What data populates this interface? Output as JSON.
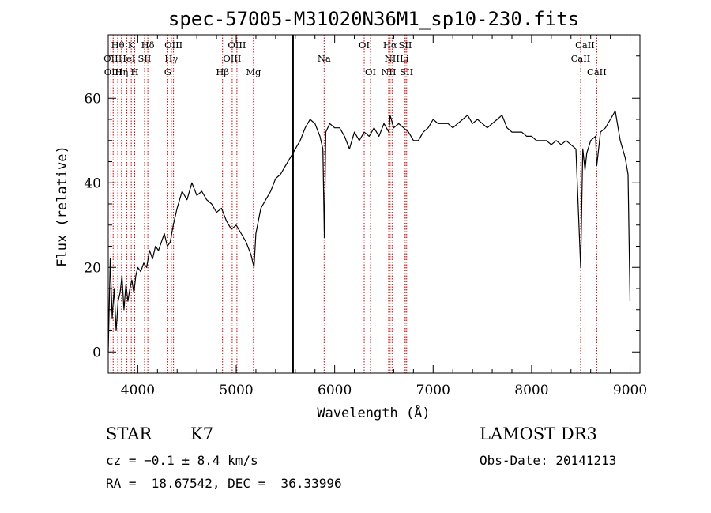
{
  "chart_data": {
    "type": "line",
    "title": "spec-57005-M31020N36M1_sp10-230.fits",
    "xlabel": "Wavelength (Å)",
    "ylabel": "Flux (relative)",
    "xlim": [
      3700,
      9100
    ],
    "ylim": [
      -5,
      75
    ],
    "xticks": [
      4000,
      5000,
      6000,
      7000,
      8000,
      9000
    ],
    "yticks": [
      0,
      20,
      40,
      60
    ],
    "series": [
      {
        "name": "spectrum",
        "color": "#000000",
        "x": [
          3700,
          3720,
          3740,
          3760,
          3780,
          3800,
          3820,
          3840,
          3860,
          3880,
          3900,
          3920,
          3940,
          3960,
          3980,
          4000,
          4030,
          4060,
          4090,
          4120,
          4150,
          4180,
          4210,
          4240,
          4270,
          4300,
          4330,
          4360,
          4400,
          4450,
          4500,
          4550,
          4600,
          4650,
          4700,
          4750,
          4800,
          4850,
          4900,
          4950,
          5000,
          5050,
          5100,
          5150,
          5180,
          5200,
          5250,
          5300,
          5350,
          5400,
          5450,
          5500,
          5550,
          5600,
          5650,
          5700,
          5750,
          5800,
          5850,
          5880,
          5895,
          5910,
          5950,
          6000,
          6050,
          6100,
          6150,
          6200,
          6250,
          6300,
          6350,
          6400,
          6450,
          6500,
          6550,
          6563,
          6600,
          6650,
          6700,
          6750,
          6800,
          6850,
          6900,
          6950,
          7000,
          7050,
          7100,
          7150,
          7200,
          7250,
          7300,
          7350,
          7400,
          7450,
          7500,
          7550,
          7600,
          7650,
          7700,
          7750,
          7800,
          7850,
          7900,
          7950,
          8000,
          8050,
          8100,
          8150,
          8200,
          8250,
          8300,
          8350,
          8400,
          8450,
          8498,
          8520,
          8542,
          8560,
          8600,
          8650,
          8662,
          8700,
          8750,
          8800,
          8850,
          8900,
          8950,
          8980,
          9000
        ],
        "y": [
          0,
          22,
          8,
          15,
          5,
          12,
          14,
          18,
          10,
          16,
          12,
          15,
          17,
          14,
          18,
          20,
          19,
          21,
          20,
          24,
          22,
          25,
          24,
          26,
          28,
          25,
          26,
          30,
          34,
          38,
          36,
          40,
          37,
          38,
          36,
          35,
          33,
          34,
          31,
          29,
          30,
          28,
          26,
          23,
          20,
          28,
          34,
          36,
          38,
          41,
          42,
          44,
          46,
          48,
          50,
          53,
          55,
          54,
          51,
          48,
          27,
          52,
          54,
          53,
          53,
          51,
          48,
          52,
          50,
          52,
          51,
          53,
          51,
          54,
          52,
          56,
          53,
          54,
          53,
          52,
          50,
          50,
          52,
          53,
          55,
          54,
          54,
          54,
          53,
          54,
          55,
          56,
          54,
          55,
          54,
          53,
          54,
          55,
          56,
          53,
          52,
          52,
          52,
          51,
          51,
          50,
          50,
          50,
          49,
          50,
          49,
          50,
          49,
          48,
          20,
          48,
          43,
          47,
          50,
          51,
          44,
          52,
          53,
          55,
          57,
          50,
          46,
          42,
          12
        ]
      }
    ],
    "spectral_lines": [
      {
        "label": "Hθ",
        "x": 3797,
        "row": 1
      },
      {
        "label": "OII",
        "x": 3727,
        "row": 2
      },
      {
        "label": "OIII",
        "x": 3750,
        "row": 3
      },
      {
        "label": "K",
        "x": 3934,
        "row": 1
      },
      {
        "label": "HeI",
        "x": 3889,
        "row": 2
      },
      {
        "label": "Hη",
        "x": 3835,
        "row": 3
      },
      {
        "label": "SII",
        "x": 4069,
        "row": 2
      },
      {
        "label": "H",
        "x": 3969,
        "row": 3
      },
      {
        "label": "Hδ",
        "x": 4102,
        "row": 1
      },
      {
        "label": "OIII",
        "x": 4363,
        "row": 1
      },
      {
        "label": "Hγ",
        "x": 4341,
        "row": 2
      },
      {
        "label": "G",
        "x": 4305,
        "row": 3
      },
      {
        "label": "OIII",
        "x": 5007,
        "row": 1
      },
      {
        "label": "OIII",
        "x": 4959,
        "row": 2
      },
      {
        "label": "Hβ",
        "x": 4861,
        "row": 3
      },
      {
        "label": "Mg",
        "x": 5175,
        "row": 3
      },
      {
        "label": "Na",
        "x": 5893,
        "row": 2
      },
      {
        "label": "OI",
        "x": 6300,
        "row": 1
      },
      {
        "label": "OI",
        "x": 6364,
        "row": 3
      },
      {
        "label": "Hα",
        "x": 6563,
        "row": 1
      },
      {
        "label": "NII",
        "x": 6583,
        "row": 2
      },
      {
        "label": "NII",
        "x": 6548,
        "row": 3
      },
      {
        "label": "SII",
        "x": 6717,
        "row": 1
      },
      {
        "label": "Li",
        "x": 6707,
        "row": 2
      },
      {
        "label": "SII",
        "x": 6731,
        "row": 3
      },
      {
        "label": "CaII",
        "x": 8542,
        "row": 1
      },
      {
        "label": "CaII",
        "x": 8498,
        "row": 2
      },
      {
        "label": "CaII",
        "x": 8662,
        "row": 3
      }
    ],
    "marker_line": {
      "x": 5577,
      "color": "#000000"
    },
    "line_color": "#cc0000"
  },
  "info": {
    "class": "STAR",
    "subclass": "K7",
    "survey": "LAMOST DR3",
    "cz": "cz = −0.1 ± 8.4 km/s",
    "obs_date": "Obs-Date: 20141213",
    "radec": "RA =  18.67542, DEC =  36.33996"
  }
}
